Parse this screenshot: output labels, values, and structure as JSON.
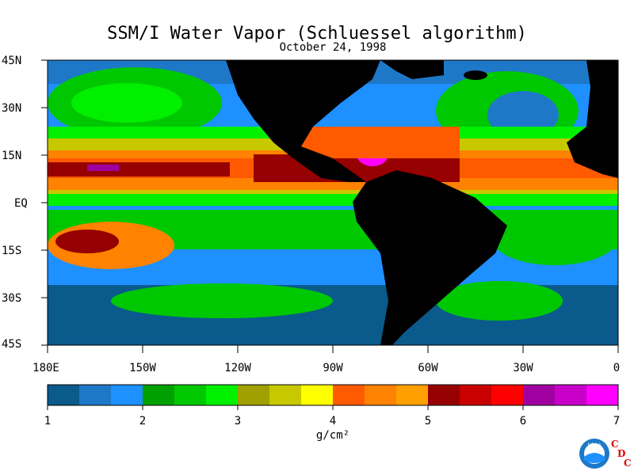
{
  "title": "SSM/I Water Vapor (Schluessel algorithm)",
  "subtitle": "October 24, 1998",
  "lat_labels": [
    "45N",
    "30N",
    "15N",
    "EQ",
    "15S",
    "30S",
    "45S"
  ],
  "lon_labels": [
    "180E",
    "150W",
    "120W",
    "90W",
    "60W",
    "30W",
    "0"
  ],
  "colorbar": {
    "ticks": [
      "1",
      "2",
      "3",
      "4",
      "5",
      "6",
      "7"
    ],
    "units": "g/cm²",
    "colors": [
      "#0a5a8c",
      "#1e78c8",
      "#1e90ff",
      "#00a000",
      "#00c800",
      "#00f000",
      "#a0a000",
      "#c8c800",
      "#ffff00",
      "#ff5a00",
      "#ff8200",
      "#ffa000",
      "#960000",
      "#c80000",
      "#ff0000",
      "#a000a0",
      "#c800c8",
      "#ff00ff"
    ]
  },
  "logo": {
    "badge_text": "NOAA",
    "cdc_letters": [
      "C",
      "D",
      "C"
    ]
  },
  "colors": {
    "land": "#000000",
    "background": "#ffffff",
    "accent": "#e00000"
  }
}
